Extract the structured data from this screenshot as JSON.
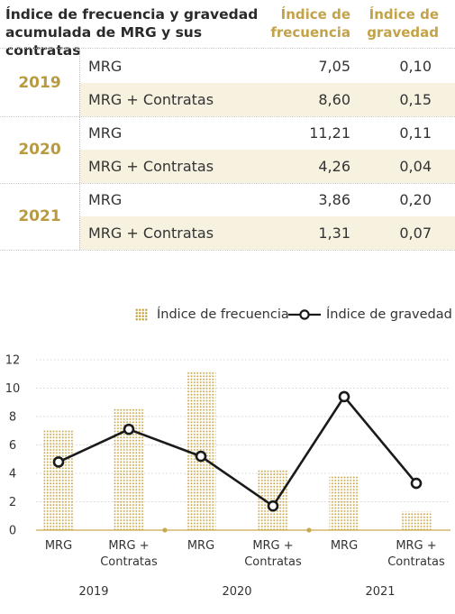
{
  "table": {
    "title_line1": "Índice de frecuencia y gravedad",
    "title_line2": "acumulada de MRG y sus contratas",
    "col_freq_line1": "Índice de",
    "col_freq_line2": "frecuencia",
    "col_grav_line1": "Índice de",
    "col_grav_line2": "gravedad",
    "years": [
      {
        "year": "2019",
        "rows": [
          {
            "name": "MRG",
            "freq": "7,05",
            "grav": "0,10"
          },
          {
            "name": "MRG + Contratas",
            "freq": "8,60",
            "grav": "0,15"
          }
        ]
      },
      {
        "year": "2020",
        "rows": [
          {
            "name": "MRG",
            "freq": "11,21",
            "grav": "0,11"
          },
          {
            "name": "MRG + Contratas",
            "freq": "4,26",
            "grav": "0,04"
          }
        ]
      },
      {
        "year": "2021",
        "rows": [
          {
            "name": "MRG",
            "freq": "3,86",
            "grav": "0,20"
          },
          {
            "name": "MRG + Contratas",
            "freq": "1,31",
            "grav": "0,07"
          }
        ]
      }
    ]
  },
  "legend": {
    "freq": "Índice de frecuencia",
    "grav": "Índice de gravedad"
  },
  "colors": {
    "gold": "#c9a94d",
    "line": "#1a1a1a",
    "year_text": "#b99a3f",
    "header_text": "#c2a349",
    "shade": "#f7f1e0"
  },
  "chart_data": {
    "type": "bar",
    "categories": [
      "MRG",
      "MRG + Contratas",
      "MRG",
      "MRG + Contratas",
      "MRG",
      "MRG + Contratas"
    ],
    "category_lines": [
      [
        "MRG"
      ],
      [
        "MRG +",
        "Contratas"
      ],
      [
        "MRG"
      ],
      [
        "MRG +",
        "Contratas"
      ],
      [
        "MRG"
      ],
      [
        "MRG +",
        "Contratas"
      ]
    ],
    "groups": [
      "2019",
      "2020",
      "2021"
    ],
    "ylim": [
      0,
      12
    ],
    "yticks": [
      0,
      2,
      4,
      6,
      8,
      10,
      12
    ],
    "series": [
      {
        "name": "Índice de frecuencia",
        "kind": "bar",
        "values": [
          7.05,
          8.6,
          11.21,
          4.26,
          3.86,
          1.31
        ]
      },
      {
        "name": "Índice de gravedad",
        "kind": "line",
        "values": [
          4.8,
          7.1,
          5.2,
          1.7,
          9.4,
          3.3
        ]
      }
    ],
    "grid": true,
    "legend_position": "top-right"
  }
}
